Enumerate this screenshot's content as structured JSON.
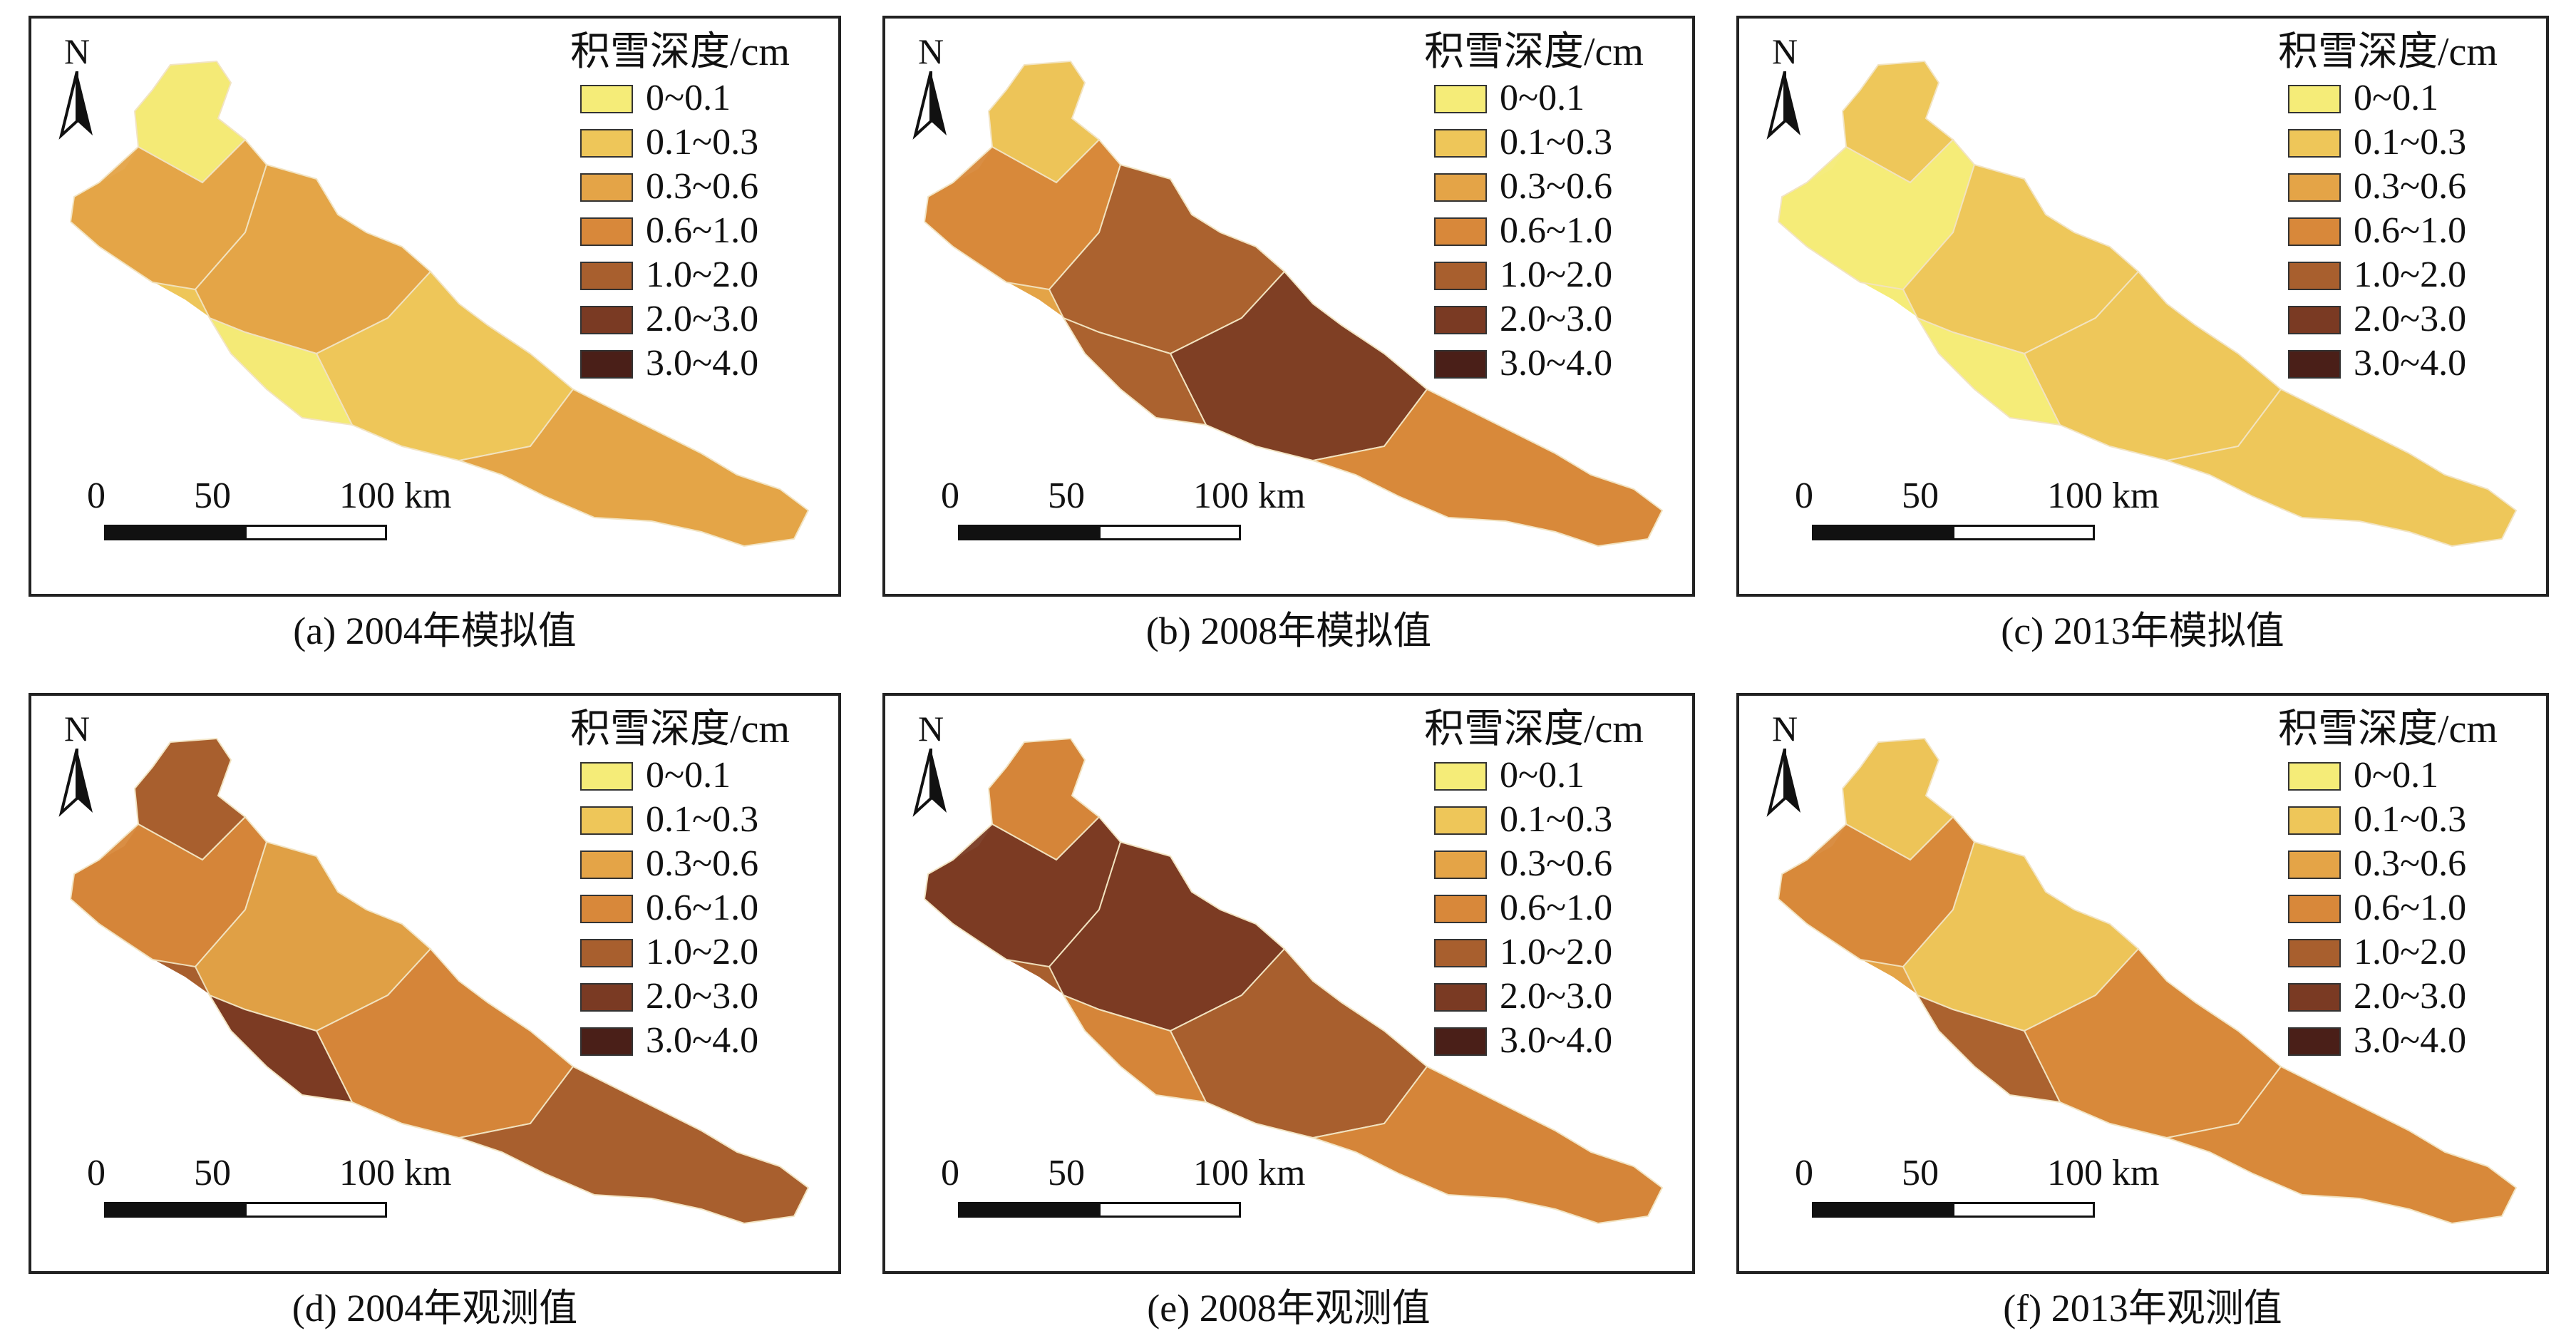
{
  "legend": {
    "title": "积雪深度/cm",
    "classes": [
      {
        "label": "0~0.1",
        "color": "#f5ec78"
      },
      {
        "label": "0.1~0.3",
        "color": "#eec659"
      },
      {
        "label": "0.3~0.6",
        "color": "#e4a447"
      },
      {
        "label": "0.6~1.0",
        "color": "#d8883a"
      },
      {
        "label": "1.0~2.0",
        "color": "#a85f2e"
      },
      {
        "label": "2.0~3.0",
        "color": "#7a3a23"
      },
      {
        "label": "3.0~4.0",
        "color": "#4a1f18"
      }
    ]
  },
  "north_arrow": {
    "letter": "N",
    "icon": "north-arrow-icon"
  },
  "scale_bar": {
    "labels": [
      "0",
      "50",
      "100 km"
    ]
  },
  "panels": [
    {
      "caption": "(a) 2004年模拟值",
      "base": 1,
      "accents": [
        0,
        2,
        2,
        1,
        0,
        2
      ]
    },
    {
      "caption": "(b) 2008年模拟值",
      "base": 2,
      "accents": [
        1,
        3,
        4,
        5,
        4,
        3
      ]
    },
    {
      "caption": "(c) 2013年模拟值",
      "base": 0,
      "accents": [
        1,
        0,
        1,
        1,
        0,
        1
      ]
    },
    {
      "caption": "(d) 2004年观测值",
      "base": 4,
      "accents": [
        4,
        3,
        2,
        3,
        5,
        4
      ]
    },
    {
      "caption": "(e) 2008年观测值",
      "base": 4,
      "accents": [
        3,
        5,
        5,
        4,
        3,
        3
      ]
    },
    {
      "caption": "(f) 2013年观测值",
      "base": 2,
      "accents": [
        1,
        3,
        1,
        3,
        4,
        3
      ]
    }
  ]
}
